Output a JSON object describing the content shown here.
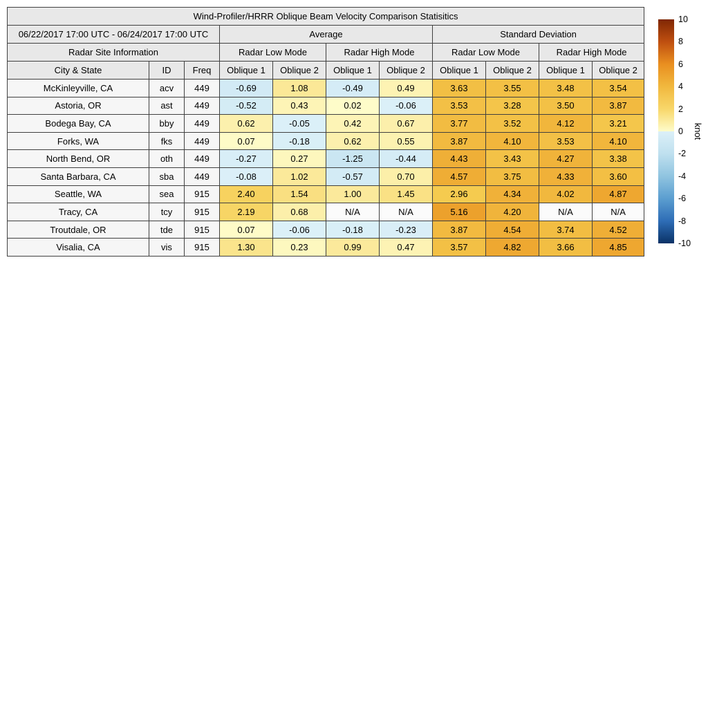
{
  "chart_data": {
    "type": "table",
    "title": "Wind-Profiler/HRRR Oblique Beam Velocity Comparison Statisitics",
    "period": "06/22/2017 17:00 UTC - 06/24/2017 17:00 UTC",
    "group_headers": {
      "average": "Average",
      "std": "Standard Deviation"
    },
    "mode_headers": {
      "site_info": "Radar Site Information",
      "low": "Radar Low Mode",
      "high": "Radar High Mode"
    },
    "col_headers": {
      "city": "City & State",
      "id": "ID",
      "freq": "Freq",
      "oblique1": "Oblique 1",
      "oblique2": "Oblique 2"
    },
    "value_columns": [
      "Average Radar Low Mode Oblique 1",
      "Average Radar Low Mode Oblique 2",
      "Average Radar High Mode Oblique 1",
      "Average Radar High Mode Oblique 2",
      "Standard Deviation Radar Low Mode Oblique 1",
      "Standard Deviation Radar Low Mode Oblique 2",
      "Standard Deviation Radar High Mode Oblique 1",
      "Standard Deviation Radar High Mode Oblique 2"
    ],
    "na_text": "N/A",
    "rows": [
      {
        "city": "McKinleyville, CA",
        "id": "acv",
        "freq": "449",
        "values": [
          "-0.69",
          "1.08",
          "-0.49",
          "0.49",
          "3.63",
          "3.55",
          "3.48",
          "3.54"
        ]
      },
      {
        "city": "Astoria, OR",
        "id": "ast",
        "freq": "449",
        "values": [
          "-0.52",
          "0.43",
          "0.02",
          "-0.06",
          "3.53",
          "3.28",
          "3.50",
          "3.87"
        ]
      },
      {
        "city": "Bodega Bay, CA",
        "id": "bby",
        "freq": "449",
        "values": [
          "0.62",
          "-0.05",
          "0.42",
          "0.67",
          "3.77",
          "3.52",
          "4.12",
          "3.21"
        ]
      },
      {
        "city": "Forks, WA",
        "id": "fks",
        "freq": "449",
        "values": [
          "0.07",
          "-0.18",
          "0.62",
          "0.55",
          "3.87",
          "4.10",
          "3.53",
          "4.10"
        ]
      },
      {
        "city": "North Bend, OR",
        "id": "oth",
        "freq": "449",
        "values": [
          "-0.27",
          "0.27",
          "-1.25",
          "-0.44",
          "4.43",
          "3.43",
          "4.27",
          "3.38"
        ]
      },
      {
        "city": "Santa Barbara, CA",
        "id": "sba",
        "freq": "449",
        "values": [
          "-0.08",
          "1.02",
          "-0.57",
          "0.70",
          "4.57",
          "3.75",
          "4.33",
          "3.60"
        ]
      },
      {
        "city": "Seattle, WA",
        "id": "sea",
        "freq": "915",
        "values": [
          "2.40",
          "1.54",
          "1.00",
          "1.45",
          "2.96",
          "4.34",
          "4.02",
          "4.87"
        ]
      },
      {
        "city": "Tracy, CA",
        "id": "tcy",
        "freq": "915",
        "values": [
          "2.19",
          "0.68",
          "N/A",
          "N/A",
          "5.16",
          "4.20",
          "N/A",
          "N/A"
        ]
      },
      {
        "city": "Troutdale, OR",
        "id": "tde",
        "freq": "915",
        "values": [
          "0.07",
          "-0.06",
          "-0.18",
          "-0.23",
          "3.87",
          "4.54",
          "3.74",
          "4.52"
        ]
      },
      {
        "city": "Visalia, CA",
        "id": "vis",
        "freq": "915",
        "values": [
          "1.30",
          "0.23",
          "0.99",
          "0.47",
          "3.57",
          "4.82",
          "3.66",
          "4.85"
        ]
      }
    ],
    "colorbar": {
      "label": "knot",
      "min": -10,
      "max": 10,
      "ticks": [
        10,
        8,
        6,
        4,
        2,
        0,
        -2,
        -4,
        -6,
        -8,
        -10
      ]
    },
    "colors": {
      "header_bg": "#e8e8e8",
      "row_label_bg": "#f6f6f6",
      "na_bg": "#fbfbfb",
      "border": "#404040",
      "positive_stops": [
        [
          0,
          "#fefcca"
        ],
        [
          1,
          "#fbe99b"
        ],
        [
          2,
          "#f8d76a"
        ],
        [
          3,
          "#f5ca4e"
        ],
        [
          4,
          "#f1b83e"
        ],
        [
          5,
          "#eda42e"
        ],
        [
          6,
          "#e98f20"
        ],
        [
          8,
          "#bf4f10"
        ],
        [
          10,
          "#7f2704"
        ]
      ],
      "negative_stops": [
        [
          0,
          "#dcf0f8"
        ],
        [
          1,
          "#cde8f3"
        ],
        [
          2,
          "#bfe0ef"
        ],
        [
          4,
          "#90c4e0"
        ],
        [
          6,
          "#5b9ed0"
        ],
        [
          8,
          "#2e6db6"
        ],
        [
          10,
          "#0a3266"
        ]
      ]
    }
  }
}
